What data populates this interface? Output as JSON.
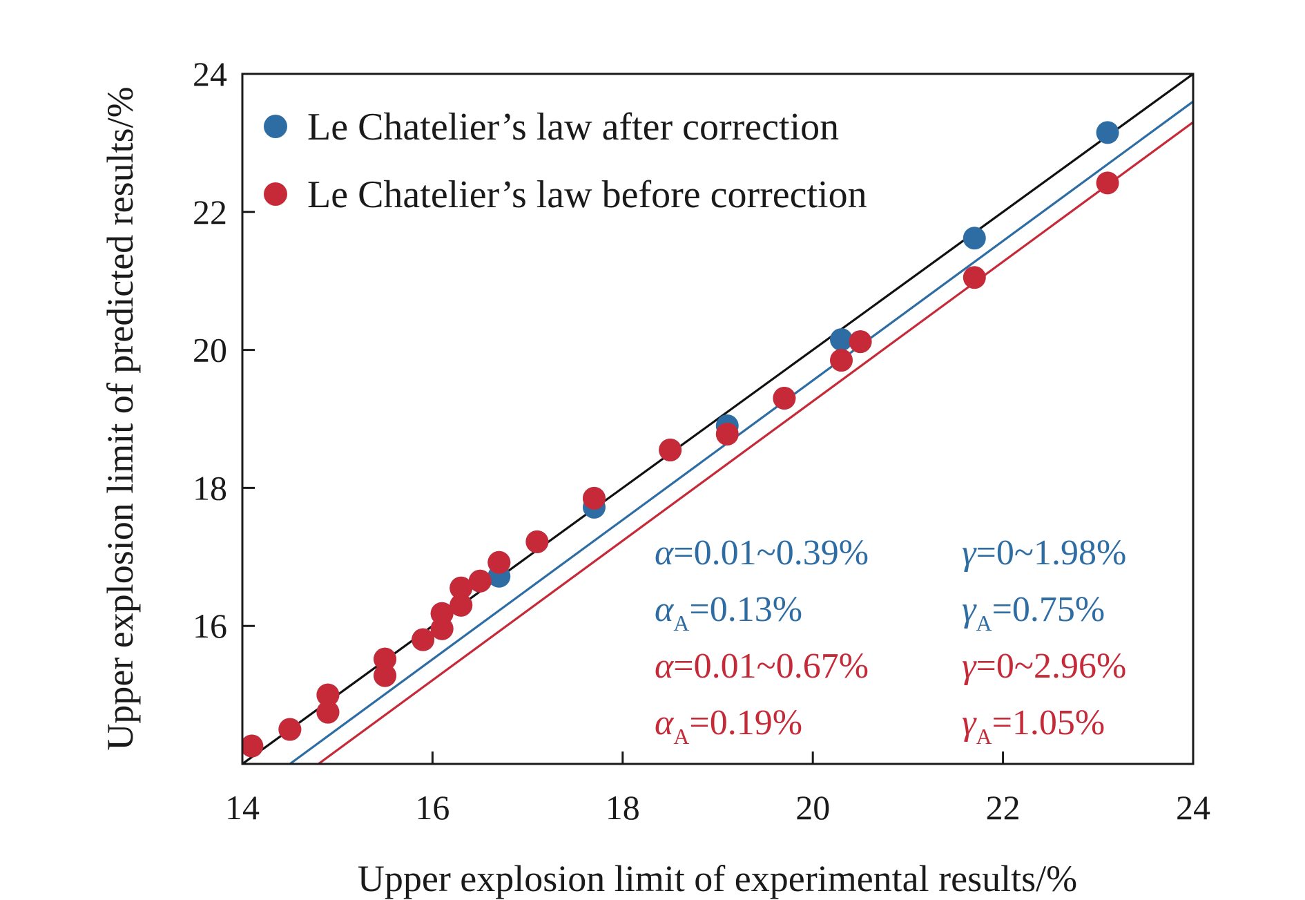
{
  "chart_data": {
    "type": "scatter",
    "title": "",
    "xlabel": "Upper explosion limit of experimental results/%",
    "ylabel": "Upper explosion limit of predicted results/%",
    "xlim": [
      14,
      24
    ],
    "ylim": [
      14,
      24
    ],
    "x_ticks": [
      14,
      16,
      18,
      20,
      22,
      24
    ],
    "y_ticks": [
      16,
      18,
      20,
      22,
      24
    ],
    "x_tick_labels": [
      "14",
      "16",
      "18",
      "20",
      "22",
      "24"
    ],
    "y_tick_labels": [
      "16",
      "18",
      "20",
      "22",
      "24"
    ],
    "grid": false,
    "legend_position": "top-left",
    "series": [
      {
        "name": "Le Chatelier’s law after correction",
        "color": "#2e6da4",
        "points": [
          [
            14.1,
            14.26
          ],
          [
            14.5,
            14.5
          ],
          [
            14.9,
            14.75
          ],
          [
            14.9,
            15.0
          ],
          [
            15.5,
            15.28
          ],
          [
            15.5,
            15.52
          ],
          [
            15.9,
            15.8
          ],
          [
            16.1,
            15.96
          ],
          [
            16.1,
            16.18
          ],
          [
            16.3,
            16.3
          ],
          [
            16.3,
            16.55
          ],
          [
            16.5,
            16.65
          ],
          [
            16.7,
            16.72
          ],
          [
            16.7,
            16.92
          ],
          [
            17.1,
            17.22
          ],
          [
            17.7,
            17.72
          ],
          [
            17.7,
            17.85
          ],
          [
            18.5,
            18.55
          ],
          [
            19.1,
            18.9
          ],
          [
            19.7,
            19.3
          ],
          [
            20.3,
            20.15
          ],
          [
            20.5,
            20.12
          ],
          [
            21.7,
            21.62
          ],
          [
            23.1,
            23.15
          ]
        ]
      },
      {
        "name": "Le Chatelier’s law before correction",
        "color": "#c62a38",
        "points": [
          [
            14.1,
            14.26
          ],
          [
            14.5,
            14.5
          ],
          [
            14.9,
            14.75
          ],
          [
            14.9,
            15.0
          ],
          [
            15.5,
            15.28
          ],
          [
            15.5,
            15.52
          ],
          [
            15.9,
            15.8
          ],
          [
            16.1,
            15.96
          ],
          [
            16.1,
            16.18
          ],
          [
            16.3,
            16.3
          ],
          [
            16.3,
            16.55
          ],
          [
            16.5,
            16.65
          ],
          [
            16.7,
            16.92
          ],
          [
            17.1,
            17.22
          ],
          [
            17.7,
            17.85
          ],
          [
            18.5,
            18.55
          ],
          [
            19.1,
            18.78
          ],
          [
            19.7,
            19.3
          ],
          [
            20.3,
            19.85
          ],
          [
            20.5,
            20.12
          ],
          [
            21.7,
            21.05
          ],
          [
            23.1,
            22.42
          ]
        ]
      }
    ],
    "lines": [
      {
        "kind": "reference",
        "color": "#111111",
        "points": [
          [
            14,
            14
          ],
          [
            24,
            24
          ]
        ]
      },
      {
        "kind": "fit-after",
        "color": "#2e6da4",
        "points": [
          [
            14.5,
            14
          ],
          [
            24,
            23.6
          ]
        ]
      },
      {
        "kind": "fit-before",
        "color": "#c62a38",
        "points": [
          [
            14.8,
            14
          ],
          [
            24,
            23.3
          ]
        ]
      }
    ],
    "annotations": [
      {
        "color": "#2e6da4",
        "left": {
          "sym": "α",
          "sub": "",
          "text": "=0.01~0.39%"
        },
        "right": {
          "sym": "γ",
          "sub": "",
          "text": "=0~1.98%"
        }
      },
      {
        "color": "#2e6da4",
        "left": {
          "sym": "α",
          "sub": "A",
          "text": "=0.13%"
        },
        "right": {
          "sym": "γ",
          "sub": "A",
          "text": "=0.75%"
        }
      },
      {
        "color": "#c62a38",
        "left": {
          "sym": "α",
          "sub": "",
          "text": "=0.01~0.67%"
        },
        "right": {
          "sym": "γ",
          "sub": "",
          "text": "=0~2.96%"
        }
      },
      {
        "color": "#c62a38",
        "left": {
          "sym": "α",
          "sub": "A",
          "text": "=0.19%"
        },
        "right": {
          "sym": "γ",
          "sub": "A",
          "text": "=1.05%"
        }
      }
    ]
  }
}
